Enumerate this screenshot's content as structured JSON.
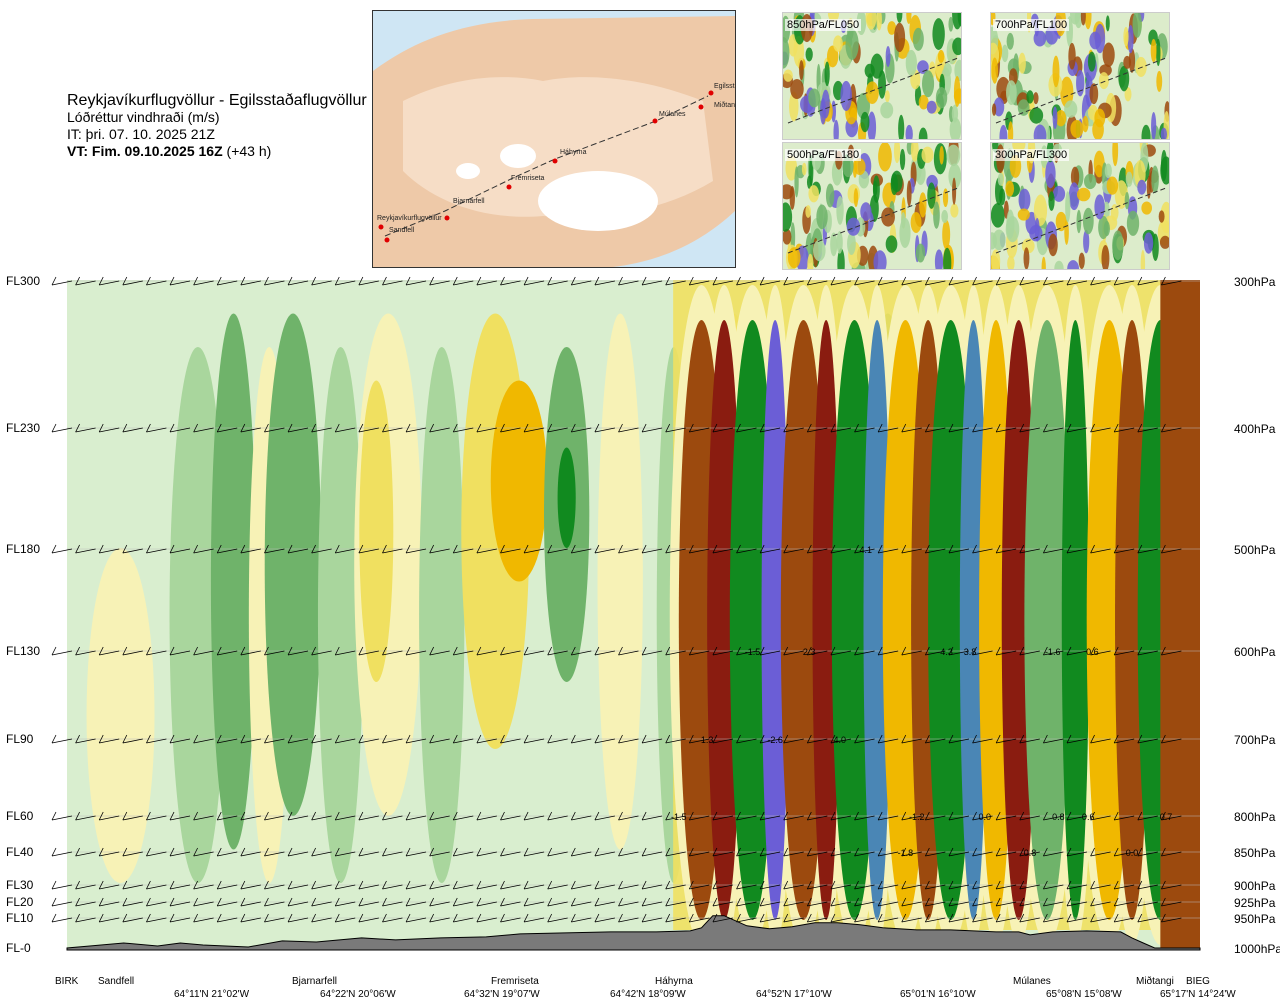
{
  "header": {
    "route": "Reykjavíkurflugvöllur - Egilsstaðaflugvöllur",
    "quantity": "Lóðréttur vindhraði (m/s)",
    "issue": "IT: þri. 07. 10. 2025 21Z",
    "valid_bold": "VT: Fim. 09.10.2025 16Z",
    "valid_offset": "(+43 h)"
  },
  "map": {
    "waypoints": [
      "Reykjavíkurflugvöllur",
      "Sandfell",
      "Bjarnarfell",
      "Fremriseta",
      "Háhyrna",
      "Múlanes",
      "Miðtangi",
      "Egilsstaðir"
    ]
  },
  "mini_maps": [
    {
      "label": "850hPa/FL050"
    },
    {
      "label": "700hPa/FL100"
    },
    {
      "label": "500hPa/FL180"
    },
    {
      "label": "300hPa/FL300"
    }
  ],
  "chart_data": {
    "type": "heatmap",
    "quantity": "Lóðréttur vindhraði (m/s)",
    "levels": [
      {
        "fl": "FL300",
        "hpa": "300hPa"
      },
      {
        "fl": "FL230",
        "hpa": "400hPa"
      },
      {
        "fl": "FL180",
        "hpa": "500hPa"
      },
      {
        "fl": "FL130",
        "hpa": "600hPa"
      },
      {
        "fl": "FL90",
        "hpa": "700hPa"
      },
      {
        "fl": "FL60",
        "hpa": "800hPa"
      },
      {
        "fl": "FL40",
        "hpa": "850hPa"
      },
      {
        "fl": "FL30",
        "hpa": "900hPa"
      },
      {
        "fl": "FL20",
        "hpa": "925hPa"
      },
      {
        "fl": "FL10",
        "hpa": "950hPa"
      },
      {
        "fl": "FL-0",
        "hpa": "1000hPa"
      }
    ],
    "locations": [
      "BIRK",
      "Sandfell",
      "Bjarnarfell",
      "Fremriseta",
      "Háhyrna",
      "Múlanes",
      "Miðtangi",
      "BIEG"
    ],
    "coordinates": [
      "64°11'N 21°02'W",
      "64°22'N 20°06'W",
      "64°32'N 19°07'W",
      "64°42'N 18°09'W",
      "64°52'N 17°10'W",
      "65°01'N 16°10'W",
      "65°08'N 15°08'W",
      "65°17'N 14°24'W"
    ],
    "value_labels": [
      {
        "text": "-1.5",
        "level": "600hPa",
        "frac": 0.605
      },
      {
        "text": "2.3",
        "level": "600hPa",
        "frac": 0.655
      },
      {
        "text": "-4.3",
        "level": "600hPa",
        "frac": 0.775
      },
      {
        "text": "3.8",
        "level": "600hPa",
        "frac": 0.797
      },
      {
        "text": "-1.6",
        "level": "600hPa",
        "frac": 0.87
      },
      {
        "text": "0.6",
        "level": "600hPa",
        "frac": 0.905
      },
      {
        "text": "4.1",
        "level": "500hPa",
        "frac": 0.705
      },
      {
        "text": "1.3",
        "level": "700hPa",
        "frac": 0.565
      },
      {
        "text": "-2.6",
        "level": "700hPa",
        "frac": 0.625
      },
      {
        "text": "4.0",
        "level": "700hPa",
        "frac": 0.682
      },
      {
        "text": "-1.5",
        "level": "800hPa",
        "frac": 0.54
      },
      {
        "text": "-1.2",
        "level": "800hPa",
        "frac": 0.75
      },
      {
        "text": "0.0",
        "level": "800hPa",
        "frac": 0.81
      },
      {
        "text": "0.8",
        "level": "800hPa",
        "frac": 0.875
      },
      {
        "text": "-0.6",
        "level": "800hPa",
        "frac": 0.9
      },
      {
        "text": "0.7",
        "level": "800hPa",
        "frac": 0.97
      },
      {
        "text": "-1.8",
        "level": "850hPa",
        "frac": 0.74
      },
      {
        "text": "0.8",
        "level": "850hPa",
        "frac": 0.85
      },
      {
        "text": "0.0",
        "level": "850hPa",
        "frac": 0.94
      }
    ],
    "colors": {
      "strong_down": "#6b5ed6",
      "down_3": "#4a86b5",
      "down_2": "#118a1f",
      "down_1": "#6fb36a",
      "down_05": "#a9d69d",
      "neutral": "#d9eecf",
      "up_05": "#f7f2b6",
      "up_1": "#f0e060",
      "up_2": "#f0b800",
      "up_3": "#9c4a0e",
      "strong_up": "#8a1c10",
      "terrain": "#7a7a7a"
    }
  }
}
